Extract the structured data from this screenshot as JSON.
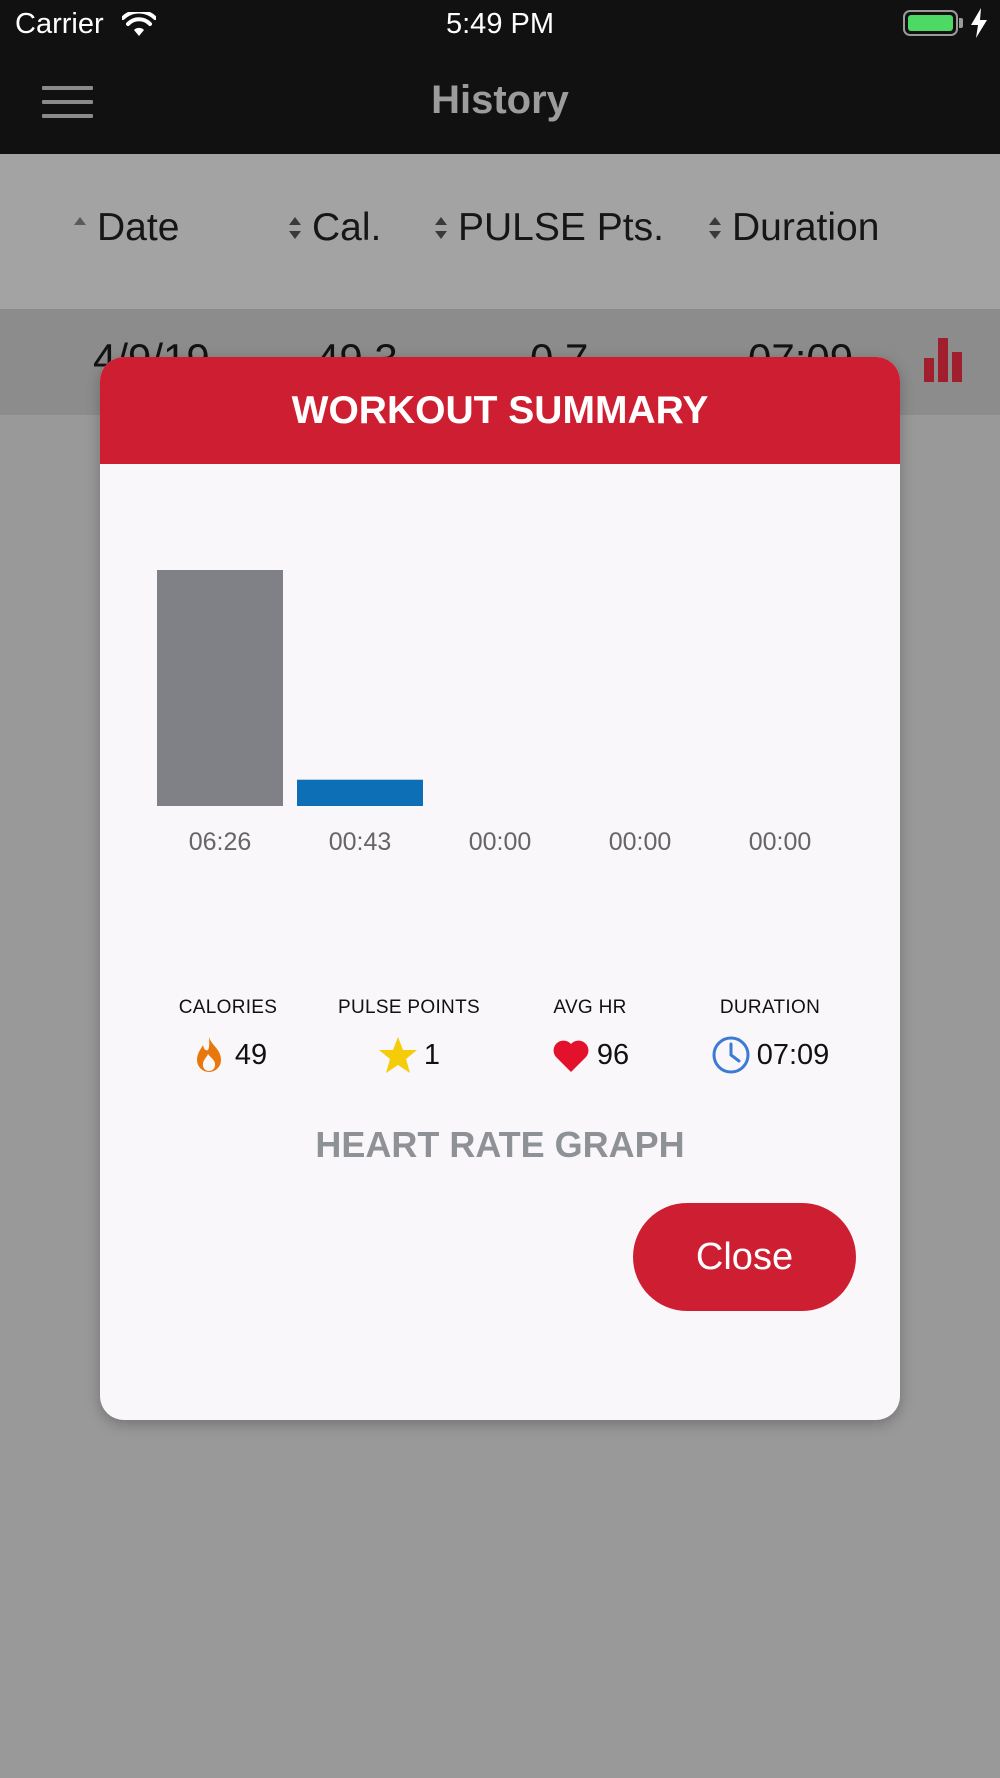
{
  "status_bar": {
    "carrier": "Carrier",
    "time": "5:49 PM",
    "icons": [
      "wifi-icon",
      "battery-icon",
      "charging-bolt-icon"
    ]
  },
  "nav": {
    "title": "History",
    "menu_icon": "hamburger-menu-icon"
  },
  "table": {
    "columns": [
      {
        "label": "Date"
      },
      {
        "label": "Cal."
      },
      {
        "label": "PULSE Pts."
      },
      {
        "label": "Duration"
      }
    ],
    "rows": [
      {
        "date": "4/9/19",
        "cal": "49.3",
        "pulse_pts": "0.7",
        "duration": "07:09"
      }
    ],
    "row_action_icon": "bar-chart-icon",
    "accent_color": "#a01e2d"
  },
  "modal": {
    "title": "WORKOUT SUMMARY",
    "header_color": "#ce1f32",
    "chart_data": {
      "type": "bar",
      "categories": [
        "06:26",
        "00:43",
        "00:00",
        "00:00",
        "00:00"
      ],
      "values": [
        386,
        43,
        0,
        0,
        0
      ],
      "colors": [
        "#808186",
        "#0d6fb5",
        "#808186",
        "#808186",
        "#808186"
      ],
      "ylim": [
        0,
        386
      ],
      "grid": false,
      "legend": "none",
      "title": "",
      "xlabel": "",
      "ylabel": ""
    },
    "stats": [
      {
        "label": "CALORIES",
        "value": "49",
        "icon": "flame-icon",
        "icon_color": "#e8780c"
      },
      {
        "label": "PULSE POINTS",
        "value": "1",
        "icon": "star-icon",
        "icon_color": "#f5cc0a"
      },
      {
        "label": "AVG HR",
        "value": "96",
        "icon": "heart-icon",
        "icon_color": "#e3112b"
      },
      {
        "label": "DURATION",
        "value": "07:09",
        "icon": "clock-icon",
        "icon_color": "#3b7bd6"
      }
    ],
    "heart_rate_graph_label": "HEART RATE GRAPH",
    "close_label": "Close"
  }
}
